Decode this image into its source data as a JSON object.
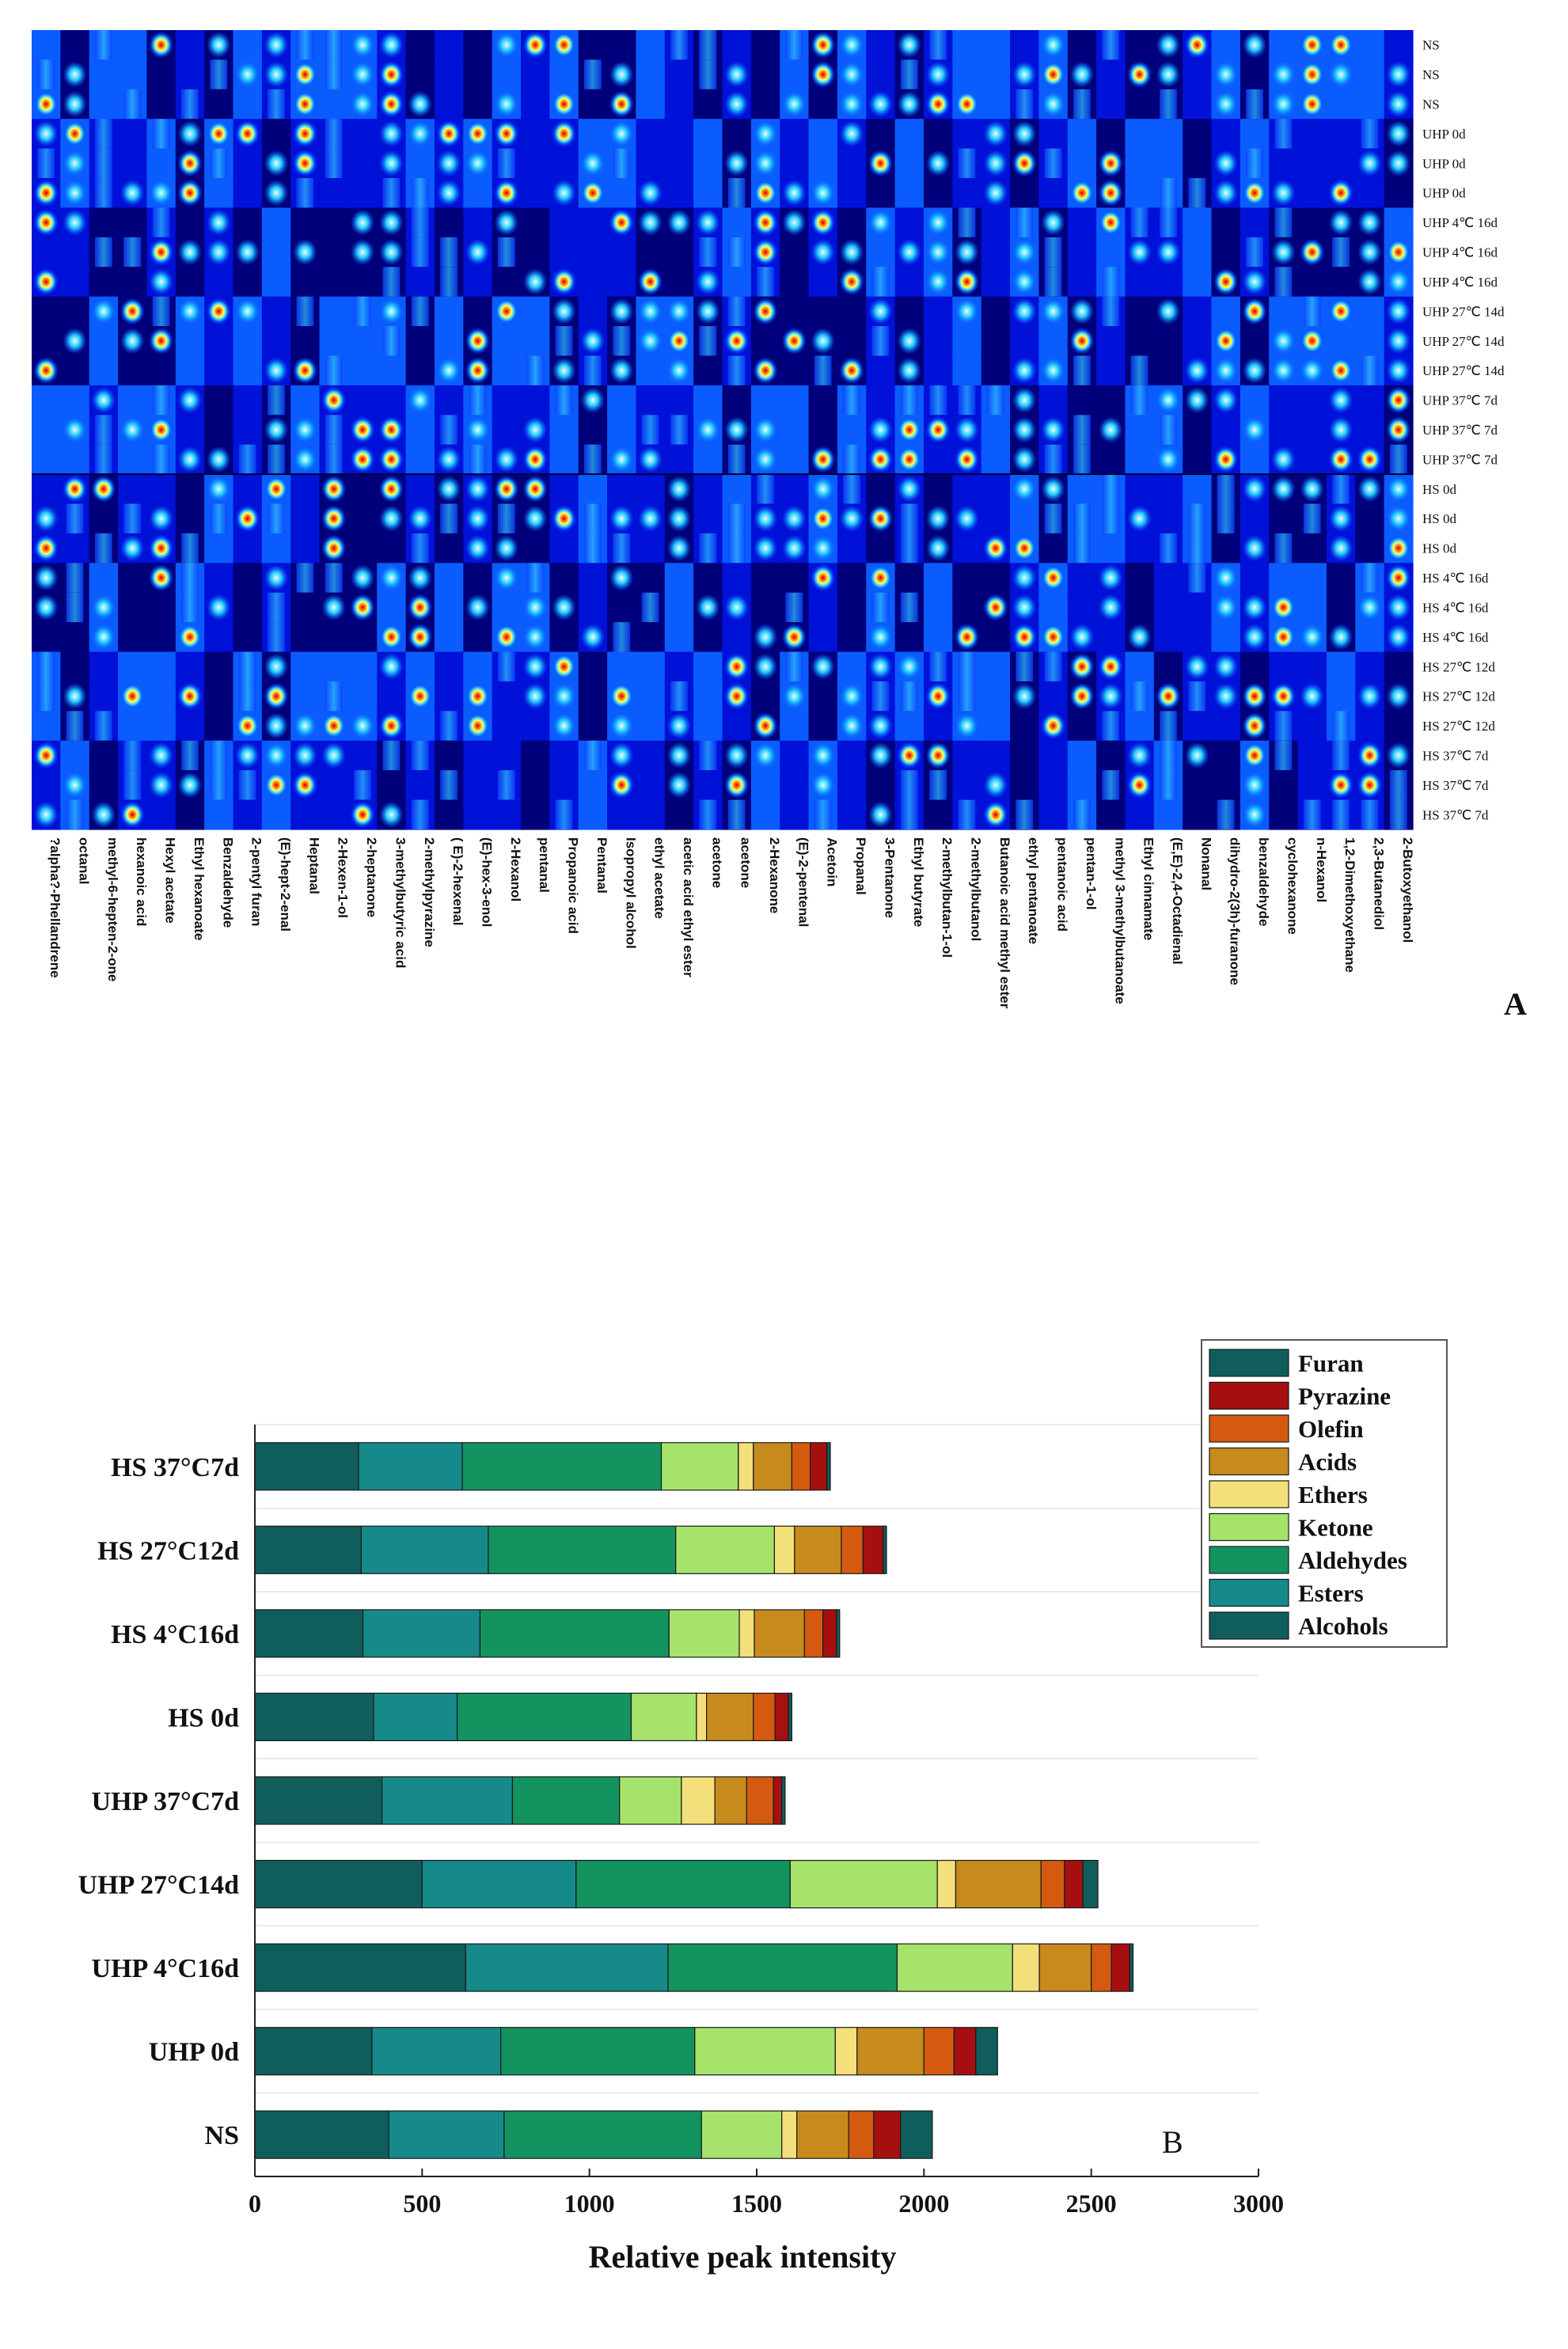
{
  "chart_data": [
    {
      "type": "heatmap",
      "panel_label": "A",
      "rows": [
        "NS",
        "NS",
        "NS",
        "UHP 0d",
        "UHP 0d",
        "UHP 0d",
        "UHP 4℃ 16d",
        "UHP 4℃ 16d",
        "UHP 4℃ 16d",
        "UHP 27℃ 14d",
        "UHP 27℃ 14d",
        "UHP 27℃ 14d",
        "UHP 37℃ 7d",
        "UHP 37℃ 7d",
        "UHP 37℃ 7d",
        "HS 0d",
        "HS 0d",
        "HS 0d",
        "HS 4℃ 16d",
        "HS 4℃ 16d",
        "HS 4℃ 16d",
        "HS 27℃ 12d",
        "HS 27℃ 12d",
        "HS 27℃ 12d",
        "HS 37℃ 7d",
        "HS 37℃ 7d",
        "HS 37℃ 7d"
      ],
      "columns": [
        "?alpha?-Phellandrene",
        "octanal",
        "methyl-6-hepten-2-one",
        "hexanoic acid",
        "Hexyl acetate",
        "Ethyl hexanoate",
        "Benzaldehyde",
        "2-pentyl furan",
        "(E)-hept-2-enal",
        "Heptanal",
        "2-Hexen-1-ol",
        "2-heptanone",
        "3-methylbutyric acid",
        "2-methylpyrazine",
        "( E)-2-hexenal",
        "(E)-hex-3-enol",
        "2-Hexanol",
        "pentanal",
        "Propanoic acid",
        "Pentanal",
        "Isopropyl alcohol",
        "ethyl acetate",
        "acetic acid ethyl ester",
        "acetone",
        "acetone",
        "2-Hexanone",
        "(E)-2-pentenal",
        "Acetoin",
        "Propanal",
        "3-Pentanone",
        "Ethyl butyrate",
        "2-methylbutan-1-ol",
        "2-methylbutanol",
        "Butanoic acid methyl ester",
        "ethyl pentanoate",
        "pentanoic acid",
        "pentan-1-ol",
        "methyl 3-methylbutanoate",
        "Ethyl cinnamate",
        "(E,E)-2,4-Octadienal",
        "Nonanal",
        "dihydro-2(3h)-furanone",
        "benzaldehyde",
        "cyclohexanone",
        "n-Hexanol",
        "1,2-Dimethoxyethane",
        "2,3-Butanediol",
        "2-Butoxyethanol"
      ],
      "colormap": [
        "#00007a",
        "#0011d8",
        "#0a5cff",
        "#16b6ff",
        "#8ff0ff",
        "#ffff66",
        "#ff9c1c",
        "#ff2a00",
        "#c20000"
      ]
    },
    {
      "type": "bar",
      "orientation": "horizontal",
      "stacked": true,
      "panel_label": "B",
      "categories": [
        "HS 37°C7d",
        "HS 27°C12d",
        "HS 4°C16d",
        "HS 0d",
        "UHP 37°C7d",
        "UHP 27°C14d",
        "UHP 4°C16d",
        "UHP 0d",
        "NS"
      ],
      "series": [
        {
          "name": "Alcohols",
          "color": "#0f5e5b",
          "values": [
            310,
            318,
            323,
            355,
            380,
            500,
            630,
            350,
            400
          ]
        },
        {
          "name": "Esters",
          "color": "#16898a",
          "values": [
            310,
            380,
            350,
            250,
            390,
            460,
            605,
            385,
            345
          ]
        },
        {
          "name": "Aldehydes",
          "color": "#13935f",
          "values": [
            595,
            560,
            565,
            520,
            320,
            640,
            685,
            580,
            590
          ]
        },
        {
          "name": "Ketone",
          "color": "#a6e36b",
          "values": [
            230,
            295,
            210,
            195,
            185,
            440,
            345,
            420,
            240
          ]
        },
        {
          "name": "Ethers",
          "color": "#f4e07a",
          "values": [
            45,
            60,
            45,
            30,
            100,
            55,
            80,
            65,
            45
          ]
        },
        {
          "name": "Acids",
          "color": "#c78a1c",
          "values": [
            115,
            140,
            150,
            140,
            95,
            255,
            155,
            200,
            155
          ]
        },
        {
          "name": "Olefin",
          "color": "#d45a0f",
          "values": [
            55,
            65,
            55,
            65,
            80,
            70,
            60,
            90,
            75
          ]
        },
        {
          "name": "Pyrazine",
          "color": "#a50f0f",
          "values": [
            50,
            60,
            40,
            40,
            25,
            55,
            55,
            65,
            80
          ]
        },
        {
          "name": "Furan",
          "color": "#0f5e5b",
          "values": [
            10,
            10,
            10,
            10,
            10,
            45,
            10,
            65,
            95
          ]
        }
      ],
      "legend_order": [
        "Furan",
        "Pyrazine",
        "Olefin",
        "Acids",
        "Ethers",
        "Ketone",
        "Aldehydes",
        "Esters",
        "Alcohols"
      ],
      "legend_position": "top-right",
      "xlabel": "Relative peak intensity",
      "xlim": [
        0,
        3000
      ],
      "xticks": [
        0,
        500,
        1000,
        1500,
        2000,
        2500,
        3000
      ],
      "grid": true
    }
  ]
}
